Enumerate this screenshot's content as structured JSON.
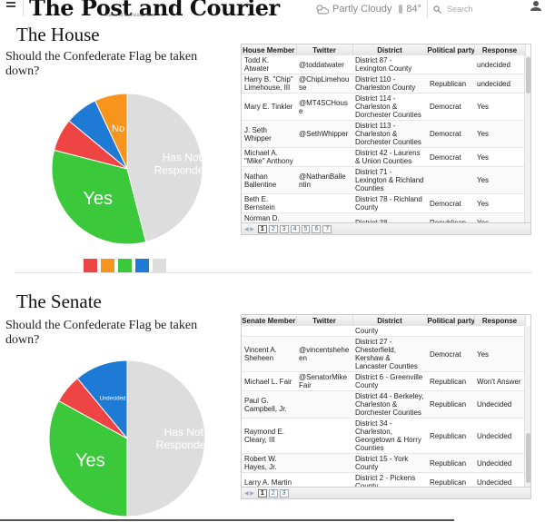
{
  "header": {
    "masthead": "The Post and Courier",
    "tagline": "Winner of the Pulitzer Prize",
    "weather_text": "Partly Cloudy",
    "temperature": "84°",
    "search_placeholder": "Search"
  },
  "house": {
    "title": "The House",
    "question": "Should the Confederate Flag be taken down?",
    "chart_data": {
      "type": "pie",
      "series": [
        {
          "label": "Has Not Responded",
          "value": 46,
          "color": "#dddddd"
        },
        {
          "label": "Yes",
          "value": 33,
          "color": "#3bc83b"
        },
        {
          "label": "",
          "value": 7,
          "color": "#ee4444"
        },
        {
          "label": "",
          "value": 7,
          "color": "#1f7ad6"
        },
        {
          "label": "No",
          "value": 7,
          "color": "#f7941d"
        }
      ]
    },
    "legend_colors": [
      "#ee4444",
      "#f7941d",
      "#3bc83b",
      "#1f7ad6",
      "#dddddd"
    ],
    "table": {
      "columns": [
        "House Member",
        "Twitter",
        "District",
        "Political party",
        "Response"
      ],
      "rows": [
        [
          "Todd K. Atwater",
          "@toddatwater",
          "District 87 - Lexington County",
          "",
          "undecided"
        ],
        [
          "Harry B. \"Chip\" Limehouse, III",
          "@ChipLimehouse",
          "District 110 - Charleston County",
          "Republican",
          "undecided"
        ],
        [
          "Mary E. Tinkler",
          "@MT4SCHouse",
          "District 114 - Charleston & Dorchester Counties",
          "Democrat",
          "Yes"
        ],
        [
          "J. Seth Whipper",
          "@SethWhipper",
          "District 113 - Charleston & Dorchester Counties",
          "Democrat",
          "Yes"
        ],
        [
          "Michael A. \"Mike\" Anthony",
          "",
          "District 42 - Laurens & Union Counties",
          "Democrat",
          "Yes"
        ],
        [
          "Nathan Ballentine",
          "@NathanBallentin",
          "District 71 - Lexington & Richland Counties",
          "",
          "Yes"
        ],
        [
          "Beth E. Bernstein",
          "",
          "District 78 - Richland County",
          "Democrat",
          "Yes"
        ],
        [
          "Norman D. \"Doug\"",
          "",
          "District 38 -",
          "Republican",
          "Yes"
        ]
      ],
      "pages": [
        "1",
        "2",
        "3",
        "4",
        "5",
        "6",
        "7"
      ]
    }
  },
  "senate": {
    "title": "The Senate",
    "question": "Should the Confederate Flag be taken down?",
    "chart_data": {
      "type": "pie",
      "series": [
        {
          "label": "Has Not Responded",
          "value": 50,
          "color": "#dddddd"
        },
        {
          "label": "Yes",
          "value": 33,
          "color": "#3bc83b"
        },
        {
          "label": "",
          "value": 6,
          "color": "#ee4444"
        },
        {
          "label": "Undecided",
          "value": 11,
          "color": "#1f7ad6"
        }
      ]
    },
    "table": {
      "columns": [
        "Senate Member",
        "Twitter",
        "District",
        "Political party",
        "Response"
      ],
      "rows": [
        [
          "",
          "",
          "County",
          "",
          ""
        ],
        [
          "Vincent A. Sheheen",
          "@vincentsheheen",
          "District 27 - Chesterfield, Kershaw & Lancaster Counties",
          "Democrat",
          "Yes"
        ],
        [
          "Michael L. Fair",
          "@SenatorMikeFair",
          "District 6 - Greenville County",
          "Republican",
          "Won't Answer"
        ],
        [
          "Paul G. Campbell, Jr.",
          "",
          "District 44 - Berkeley, Charleston & Dorchester Counties",
          "Republican",
          "Undecided"
        ],
        [
          "Raymond E. Cleary, III",
          "",
          "District 34 - Charleston, Georgetown & Horry Counties",
          "Republican",
          "Undecided"
        ],
        [
          "Robert W. Hayes, Jr.",
          "",
          "District 15 - York County",
          "Republican",
          "Undecided"
        ],
        [
          "Larry A. Martin",
          "",
          "District 2 - Pickens County",
          "Republican",
          "Undecided"
        ]
      ],
      "pages": [
        "1",
        "2",
        "3"
      ]
    }
  }
}
